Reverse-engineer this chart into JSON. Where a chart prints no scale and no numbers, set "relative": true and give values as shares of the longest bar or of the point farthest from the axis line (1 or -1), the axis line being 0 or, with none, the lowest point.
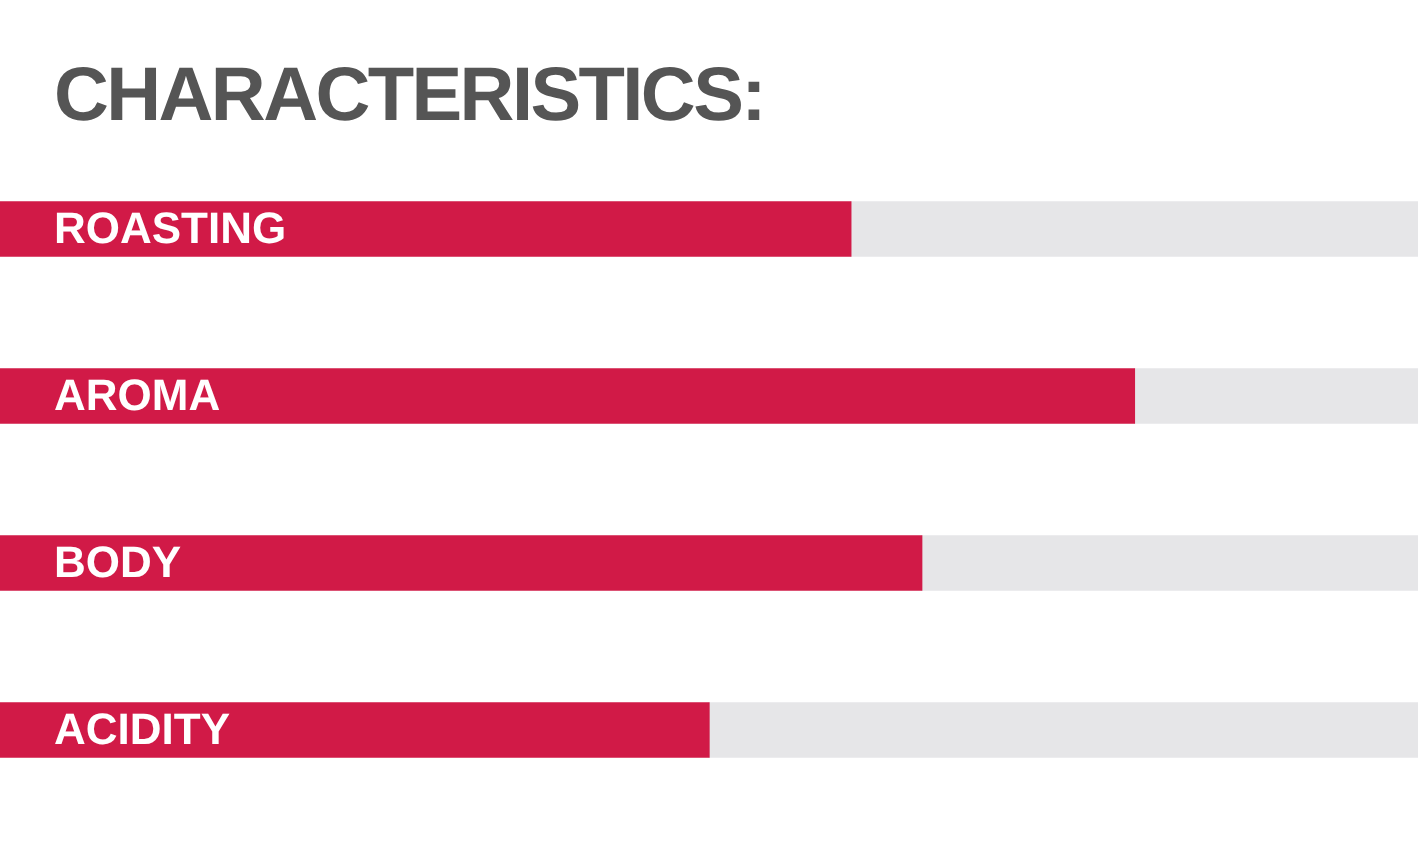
{
  "chart_data": {
    "type": "bar",
    "title": "CHARACTERISTICS:",
    "orientation": "horizontal",
    "stacked": true,
    "relative": true,
    "categories": [
      "ROASTING",
      "AROMA",
      "BODY",
      "ACIDITY"
    ],
    "series": [
      {
        "color": "#d11a47",
        "values": [
          0.6,
          0.8,
          0.65,
          0.5
        ]
      },
      {
        "color": "#e6e6e8",
        "values": [
          0.4,
          0.2,
          0.35,
          0.5
        ]
      }
    ]
  }
}
